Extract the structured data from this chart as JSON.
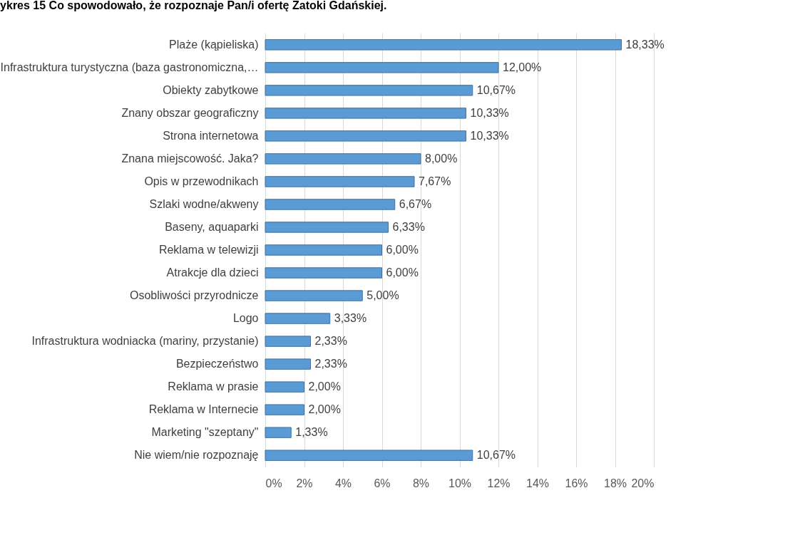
{
  "chart_data": {
    "type": "bar",
    "orientation": "horizontal",
    "title": "ykres 15 Co spowodowało, że rozpoznaje Pan/i ofertę Zatoki Gdańskiej.",
    "categories": [
      "Plaże (kąpieliska)",
      "Infrastruktura turystyczna (baza gastronomiczna,…",
      "Obiekty zabytkowe",
      "Znany obszar geograficzny",
      "Strona internetowa",
      "Znana miejscowość. Jaka?",
      "Opis w przewodnikach",
      "Szlaki wodne/akweny",
      "Baseny, aquaparki",
      "Reklama w telewizji",
      "Atrakcje dla dzieci",
      "Osobliwości przyrodnicze",
      "Logo",
      "Infrastruktura wodniacka (mariny, przystanie)",
      "Bezpieczeństwo",
      "Reklama w prasie",
      "Reklama w Internecie",
      "Marketing \"szeptany\"",
      "Nie wiem/nie rozpoznaję"
    ],
    "values": [
      18.33,
      12.0,
      10.67,
      10.33,
      10.33,
      8.0,
      7.67,
      6.67,
      6.33,
      6.0,
      6.0,
      5.0,
      3.33,
      2.33,
      2.33,
      2.0,
      2.0,
      1.33,
      10.67
    ],
    "value_labels": [
      "18,33%",
      "12,00%",
      "10,67%",
      "10,33%",
      "10,33%",
      "8,00%",
      "7,67%",
      "6,67%",
      "6,33%",
      "6,00%",
      "6,00%",
      "5,00%",
      "3,33%",
      "2,33%",
      "2,33%",
      "2,00%",
      "2,00%",
      "1,33%",
      "10,67%"
    ],
    "color": "#5b9bd5",
    "xlim": [
      0,
      20
    ],
    "xticks": [
      {
        "value": 0,
        "label": "0%"
      },
      {
        "value": 2,
        "label": "2%"
      },
      {
        "value": 4,
        "label": "4%"
      },
      {
        "value": 6,
        "label": "6%"
      },
      {
        "value": 8,
        "label": "8%"
      },
      {
        "value": 10,
        "label": "10%"
      },
      {
        "value": 12,
        "label": "12%"
      },
      {
        "value": 14,
        "label": "14%"
      },
      {
        "value": 16,
        "label": "16%"
      },
      {
        "value": 18,
        "label": "18%"
      },
      {
        "value": 20,
        "label": "20%"
      }
    ],
    "grid": "x"
  }
}
